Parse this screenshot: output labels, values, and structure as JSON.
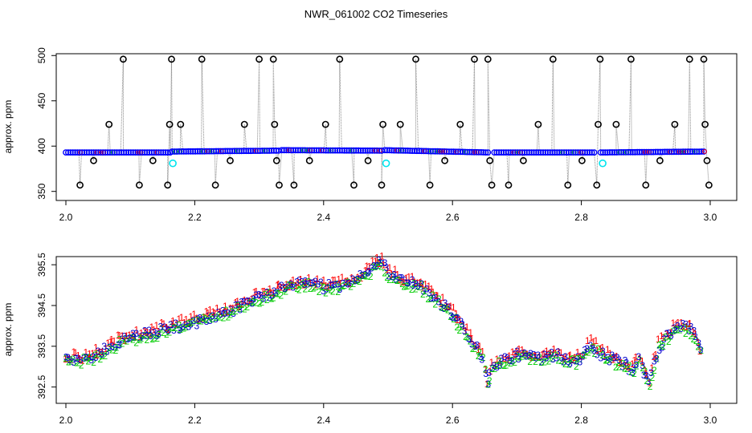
{
  "title": "NWR_061002  CO2 Timeseries",
  "chart_data": [
    {
      "type": "scatter",
      "title": "NWR_061002  CO2 Timeseries",
      "xlabel": "",
      "ylabel": "approx. ppm",
      "xlim": [
        2.0,
        3.0
      ],
      "ylim": [
        340,
        502
      ],
      "x_ticks": [
        "2.0",
        "2.2",
        "2.4",
        "2.6",
        "2.8",
        "3.0"
      ],
      "x_tick_values": [
        2.0,
        2.2,
        2.4,
        2.6,
        2.8,
        3.0
      ],
      "y_ticks": [
        "350",
        "400",
        "450",
        "500"
      ],
      "y_tick_values": [
        350,
        400,
        450,
        500
      ],
      "colors": {
        "line": "#888888",
        "blue": "#0000ff",
        "black": "#000000",
        "cyan": "#00e5ee",
        "green": "#00cc00",
        "red": "#ff0000"
      },
      "series": [
        {
          "marker": "blue circles",
          "segments": [
            {
              "x": [
                2.0,
                2.162
              ],
              "y": [
                393,
                393
              ]
            },
            {
              "x": [
                2.165,
                2.33
              ],
              "y": [
                394,
                395
              ]
            },
            {
              "x": [
                2.335,
                2.49
              ],
              "y": [
                395.5,
                395
              ]
            },
            {
              "x": [
                2.495,
                2.655
              ],
              "y": [
                395.5,
                393
              ]
            },
            {
              "x": [
                2.665,
                2.82
              ],
              "y": [
                393,
                393
              ]
            },
            {
              "x": [
                2.83,
                2.99
              ],
              "y": [
                393,
                394
              ]
            }
          ]
        },
        {
          "marker": "black open circles",
          "x": [
            2.022,
            2.043,
            2.067,
            2.089,
            2.114,
            2.135,
            2.158,
            2.161,
            2.164,
            2.178,
            2.211,
            2.232,
            2.255,
            2.277,
            2.3,
            2.322,
            2.324,
            2.327,
            2.331,
            2.354,
            2.378,
            2.403,
            2.425,
            2.447,
            2.469,
            2.49,
            2.492,
            2.519,
            2.543,
            2.565,
            2.588,
            2.612,
            2.634,
            2.655,
            2.658,
            2.661,
            2.687,
            2.71,
            2.733,
            2.756,
            2.779,
            2.801,
            2.824,
            2.826,
            2.829,
            2.854,
            2.877,
            2.9,
            2.922,
            2.945,
            2.968,
            2.99,
            2.992,
            2.995,
            2.998
          ],
          "y": [
            357,
            384,
            424,
            496,
            357,
            384,
            357,
            424,
            496,
            424,
            496,
            357,
            384,
            424,
            496,
            496,
            424,
            384,
            357,
            357,
            384,
            424,
            496,
            357,
            384,
            357,
            424,
            424,
            496,
            357,
            384,
            424,
            496,
            496,
            384,
            357,
            357,
            384,
            424,
            496,
            357,
            384,
            357,
            424,
            496,
            424,
            496,
            357,
            384,
            424,
            496,
            496,
            424,
            384,
            357
          ]
        },
        {
          "marker": "cyan circles",
          "x": [
            2.166,
            2.497,
            2.833
          ],
          "y": [
            381,
            381,
            381
          ]
        }
      ]
    },
    {
      "type": "scatter",
      "title": "",
      "xlabel": "",
      "ylabel": "approx. ppm",
      "xlim": [
        2.0,
        3.0
      ],
      "ylim": [
        392.1,
        395.7
      ],
      "x_ticks": [
        "2.0",
        "2.2",
        "2.4",
        "2.6",
        "2.8",
        "3.0"
      ],
      "x_tick_values": [
        2.0,
        2.2,
        2.4,
        2.6,
        2.8,
        3.0
      ],
      "y_ticks": [
        "392.5",
        "393.5",
        "394.5",
        "395.5"
      ],
      "y_tick_values": [
        392.5,
        393.5,
        394.5,
        395.5
      ],
      "series_markers": [
        "1",
        "2",
        "3"
      ],
      "series_colors": [
        "#ff0000",
        "#00cc00",
        "#0000cc"
      ],
      "trend": {
        "x": [
          2.0,
          2.02,
          2.05,
          2.08,
          2.1,
          2.15,
          2.2,
          2.25,
          2.3,
          2.35,
          2.38,
          2.4,
          2.43,
          2.45,
          2.47,
          2.48,
          2.49,
          2.5,
          2.52,
          2.55,
          2.58,
          2.6,
          2.62,
          2.63,
          2.645,
          2.652,
          2.655,
          2.66,
          2.7,
          2.74,
          2.76,
          2.78,
          2.8,
          2.815,
          2.83,
          2.86,
          2.88,
          2.89,
          2.905,
          2.92,
          2.94,
          2.95,
          2.97,
          2.985
        ],
        "y": [
          393.2,
          393.15,
          393.3,
          393.6,
          393.7,
          393.9,
          394.1,
          394.35,
          394.7,
          395.0,
          395.05,
          394.95,
          395.0,
          395.1,
          395.35,
          395.5,
          395.55,
          395.3,
          395.1,
          395.0,
          394.6,
          394.3,
          393.9,
          393.6,
          393.3,
          392.8,
          392.4,
          393.0,
          393.3,
          393.2,
          393.3,
          393.15,
          393.2,
          393.6,
          393.3,
          393.1,
          392.95,
          393.15,
          392.6,
          393.5,
          393.85,
          394.0,
          393.9,
          393.4
        ]
      }
    }
  ]
}
